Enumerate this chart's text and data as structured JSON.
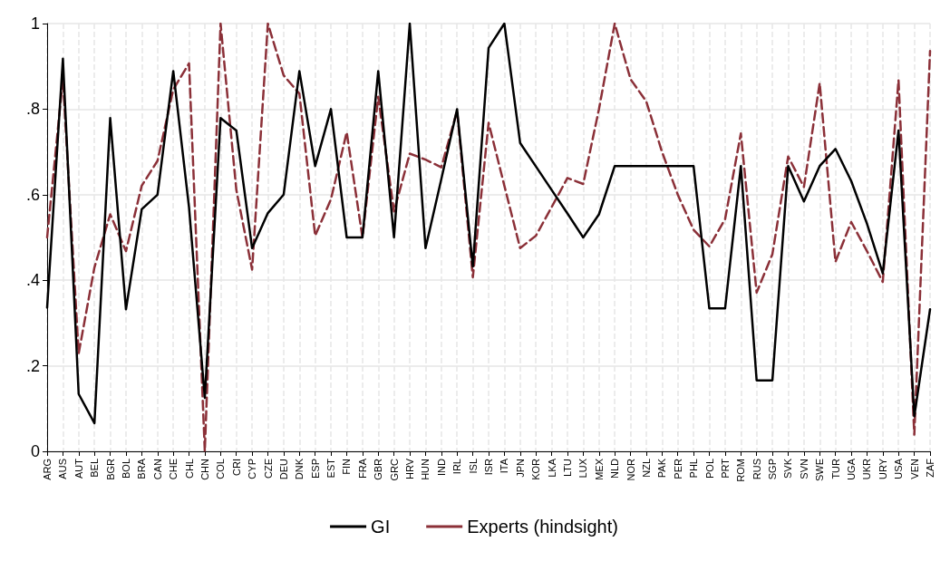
{
  "chart_data": {
    "type": "line",
    "categories": [
      "ARG",
      "AUS",
      "AUT",
      "BEL",
      "BGR",
      "BOL",
      "BRA",
      "CAN",
      "CHE",
      "CHL",
      "CHN",
      "COL",
      "CRI",
      "CYP",
      "CZE",
      "DEU",
      "DNK",
      "ESP",
      "EST",
      "FIN",
      "FRA",
      "GBR",
      "GRC",
      "HRV",
      "HUN",
      "IND",
      "IRL",
      "ISL",
      "ISR",
      "ITA",
      "JPN",
      "KOR",
      "LKA",
      "LTU",
      "LUX",
      "MEX",
      "NLD",
      "NOR",
      "NZL",
      "PAK",
      "PER",
      "PHL",
      "POL",
      "PRT",
      "ROM",
      "RUS",
      "SGP",
      "SVK",
      "SVN",
      "SWE",
      "TUR",
      "UGA",
      "UKR",
      "URY",
      "USA",
      "VEN",
      "ZAF"
    ],
    "series": [
      {
        "name": "GI",
        "color": "#000000",
        "line_style": "solid",
        "values": [
          0.336,
          0.918,
          0.134,
          0.066,
          0.779,
          0.332,
          0.566,
          0.6,
          0.889,
          0.57,
          0.125,
          0.779,
          0.75,
          0.475,
          0.557,
          0.6,
          0.889,
          0.667,
          0.8,
          0.5,
          0.5,
          0.889,
          0.5,
          1.0,
          0.475,
          0.636,
          0.8,
          0.432,
          0.943,
          1.0,
          0.721,
          0.666,
          0.611,
          0.556,
          0.5,
          0.554,
          0.667,
          0.667,
          0.667,
          0.667,
          0.667,
          0.667,
          0.334,
          0.334,
          0.667,
          0.166,
          0.166,
          0.667,
          0.584,
          0.667,
          0.707,
          0.632,
          0.532,
          0.416,
          0.75,
          0.082,
          0.332
        ]
      },
      {
        "name": "Experts (hindsight)",
        "color": "#8b3038",
        "line_style": "dashed",
        "values": [
          0.5,
          0.871,
          0.229,
          0.43,
          0.554,
          0.468,
          0.621,
          0.679,
          0.846,
          0.907,
          0.0,
          1.0,
          0.611,
          0.425,
          1.0,
          0.879,
          0.836,
          0.504,
          0.589,
          0.746,
          0.5,
          0.829,
          0.561,
          0.696,
          0.682,
          0.664,
          0.796,
          0.407,
          0.768,
          0.621,
          0.475,
          0.504,
          0.571,
          0.639,
          0.625,
          0.8,
          1.0,
          0.87,
          0.818,
          0.7,
          0.6,
          0.518,
          0.479,
          0.543,
          0.743,
          0.371,
          0.461,
          0.689,
          0.618,
          0.861,
          0.443,
          0.536,
          0.468,
          0.396,
          0.868,
          0.039,
          0.936
        ]
      }
    ],
    "ylim": [
      0,
      1
    ],
    "yticks": [
      0,
      {
        "value": 0.2,
        "label": ".2"
      },
      {
        "value": 0.4,
        "label": ".4"
      },
      {
        "value": 0.6,
        "label": ".6"
      },
      {
        "value": 0.8,
        "label": ".8"
      },
      1
    ],
    "grid": true,
    "legend": "bottom",
    "marker": "none"
  }
}
